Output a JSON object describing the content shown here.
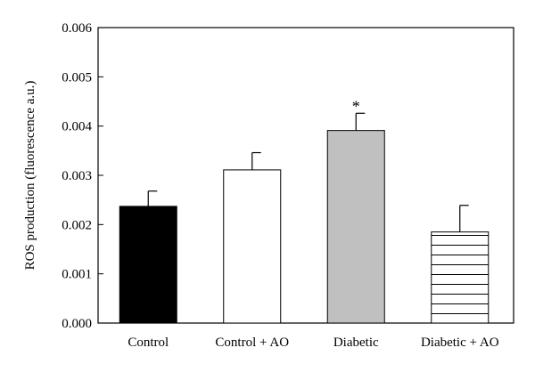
{
  "chart_data": {
    "type": "bar",
    "title": "",
    "xlabel": "",
    "ylabel": "ROS production (fluorescence a.u.)",
    "ylim": [
      0,
      0.006
    ],
    "yticks": [
      "0.000",
      "0.001",
      "0.002",
      "0.003",
      "0.004",
      "0.005",
      "0.006"
    ],
    "categories": [
      "Control",
      "Control + AO",
      "Diabetic",
      "Diabetic + AO"
    ],
    "values": [
      0.00237,
      0.00311,
      0.00391,
      0.00185
    ],
    "errors": [
      0.00031,
      0.00035,
      0.00035,
      0.00054
    ],
    "bar_styles": [
      {
        "fill": "#000000",
        "pattern": "solid"
      },
      {
        "fill": "#ffffff",
        "pattern": "solid"
      },
      {
        "fill": "#c0c0c0",
        "pattern": "solid"
      },
      {
        "fill": "#ffffff",
        "pattern": "horizontal-lines"
      }
    ],
    "annotations": [
      {
        "category": "Diabetic",
        "text": "*"
      }
    ],
    "grid": false,
    "legend": "none"
  }
}
